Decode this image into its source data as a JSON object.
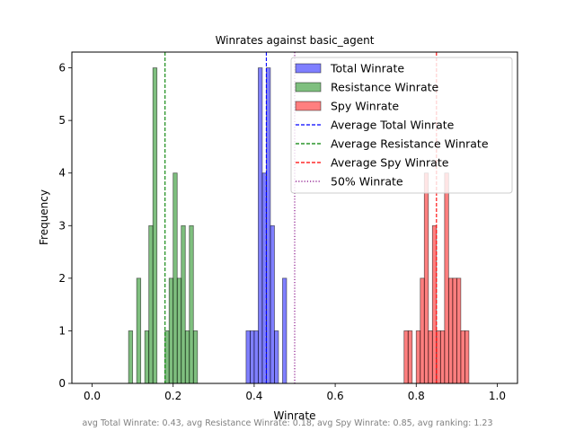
{
  "chart_data": {
    "type": "histogram",
    "title": "Winrates against basic_agent",
    "xlabel": "Winrate",
    "ylabel": "Frequency",
    "xlim": [
      -0.05,
      1.05
    ],
    "ylim": [
      0,
      6.3
    ],
    "xticks": [
      0.0,
      0.2,
      0.4,
      0.6,
      0.8,
      1.0
    ],
    "xtick_labels": [
      "0.0",
      "0.2",
      "0.4",
      "0.6",
      "0.8",
      "1.0"
    ],
    "yticks": [
      0,
      1,
      2,
      3,
      4,
      5,
      6
    ],
    "ytick_labels": [
      "0",
      "1",
      "2",
      "3",
      "4",
      "5",
      "6"
    ],
    "bin_width": 0.01,
    "grid": false,
    "legend_position": "top-right",
    "series": [
      {
        "name": "Total Winrate",
        "color": "#0000ff",
        "alpha": 0.5,
        "bins": [
          {
            "x": 0.38,
            "count": 1
          },
          {
            "x": 0.39,
            "count": 1
          },
          {
            "x": 0.4,
            "count": 1
          },
          {
            "x": 0.41,
            "count": 6
          },
          {
            "x": 0.42,
            "count": 4
          },
          {
            "x": 0.43,
            "count": 6
          },
          {
            "x": 0.44,
            "count": 3
          },
          {
            "x": 0.45,
            "count": 1
          },
          {
            "x": 0.47,
            "count": 2
          }
        ]
      },
      {
        "name": "Resistance Winrate",
        "color": "#008000",
        "alpha": 0.5,
        "bins": [
          {
            "x": 0.09,
            "count": 1
          },
          {
            "x": 0.11,
            "count": 2
          },
          {
            "x": 0.13,
            "count": 1
          },
          {
            "x": 0.14,
            "count": 3
          },
          {
            "x": 0.15,
            "count": 6
          },
          {
            "x": 0.18,
            "count": 1
          },
          {
            "x": 0.19,
            "count": 2
          },
          {
            "x": 0.2,
            "count": 4
          },
          {
            "x": 0.21,
            "count": 2
          },
          {
            "x": 0.22,
            "count": 3
          },
          {
            "x": 0.23,
            "count": 1
          },
          {
            "x": 0.24,
            "count": 3
          },
          {
            "x": 0.25,
            "count": 1
          }
        ]
      },
      {
        "name": "Spy Winrate",
        "color": "#ff0000",
        "alpha": 0.5,
        "bins": [
          {
            "x": 0.77,
            "count": 1
          },
          {
            "x": 0.78,
            "count": 1
          },
          {
            "x": 0.8,
            "count": 1
          },
          {
            "x": 0.81,
            "count": 2
          },
          {
            "x": 0.82,
            "count": 4
          },
          {
            "x": 0.83,
            "count": 1
          },
          {
            "x": 0.84,
            "count": 3
          },
          {
            "x": 0.85,
            "count": 1
          },
          {
            "x": 0.86,
            "count": 1
          },
          {
            "x": 0.87,
            "count": 4
          },
          {
            "x": 0.88,
            "count": 2
          },
          {
            "x": 0.89,
            "count": 2
          },
          {
            "x": 0.9,
            "count": 2
          },
          {
            "x": 0.91,
            "count": 1
          },
          {
            "x": 0.92,
            "count": 1
          }
        ]
      }
    ],
    "reference_lines": [
      {
        "name": "Average Total Winrate",
        "x": 0.43,
        "color": "#0000ff",
        "style": "dashed"
      },
      {
        "name": "Average Resistance Winrate",
        "x": 0.18,
        "color": "#008000",
        "style": "dashed"
      },
      {
        "name": "Average Spy Winrate",
        "x": 0.85,
        "color": "#ff0000",
        "style": "dashed"
      },
      {
        "name": "50% Winrate",
        "x": 0.5,
        "color": "#800080",
        "style": "dotted"
      }
    ],
    "footnote": "avg Total Winrate: 0.43, avg Resistance Winrate: 0.18, avg Spy Winrate: 0.85, avg ranking: 1.23"
  }
}
